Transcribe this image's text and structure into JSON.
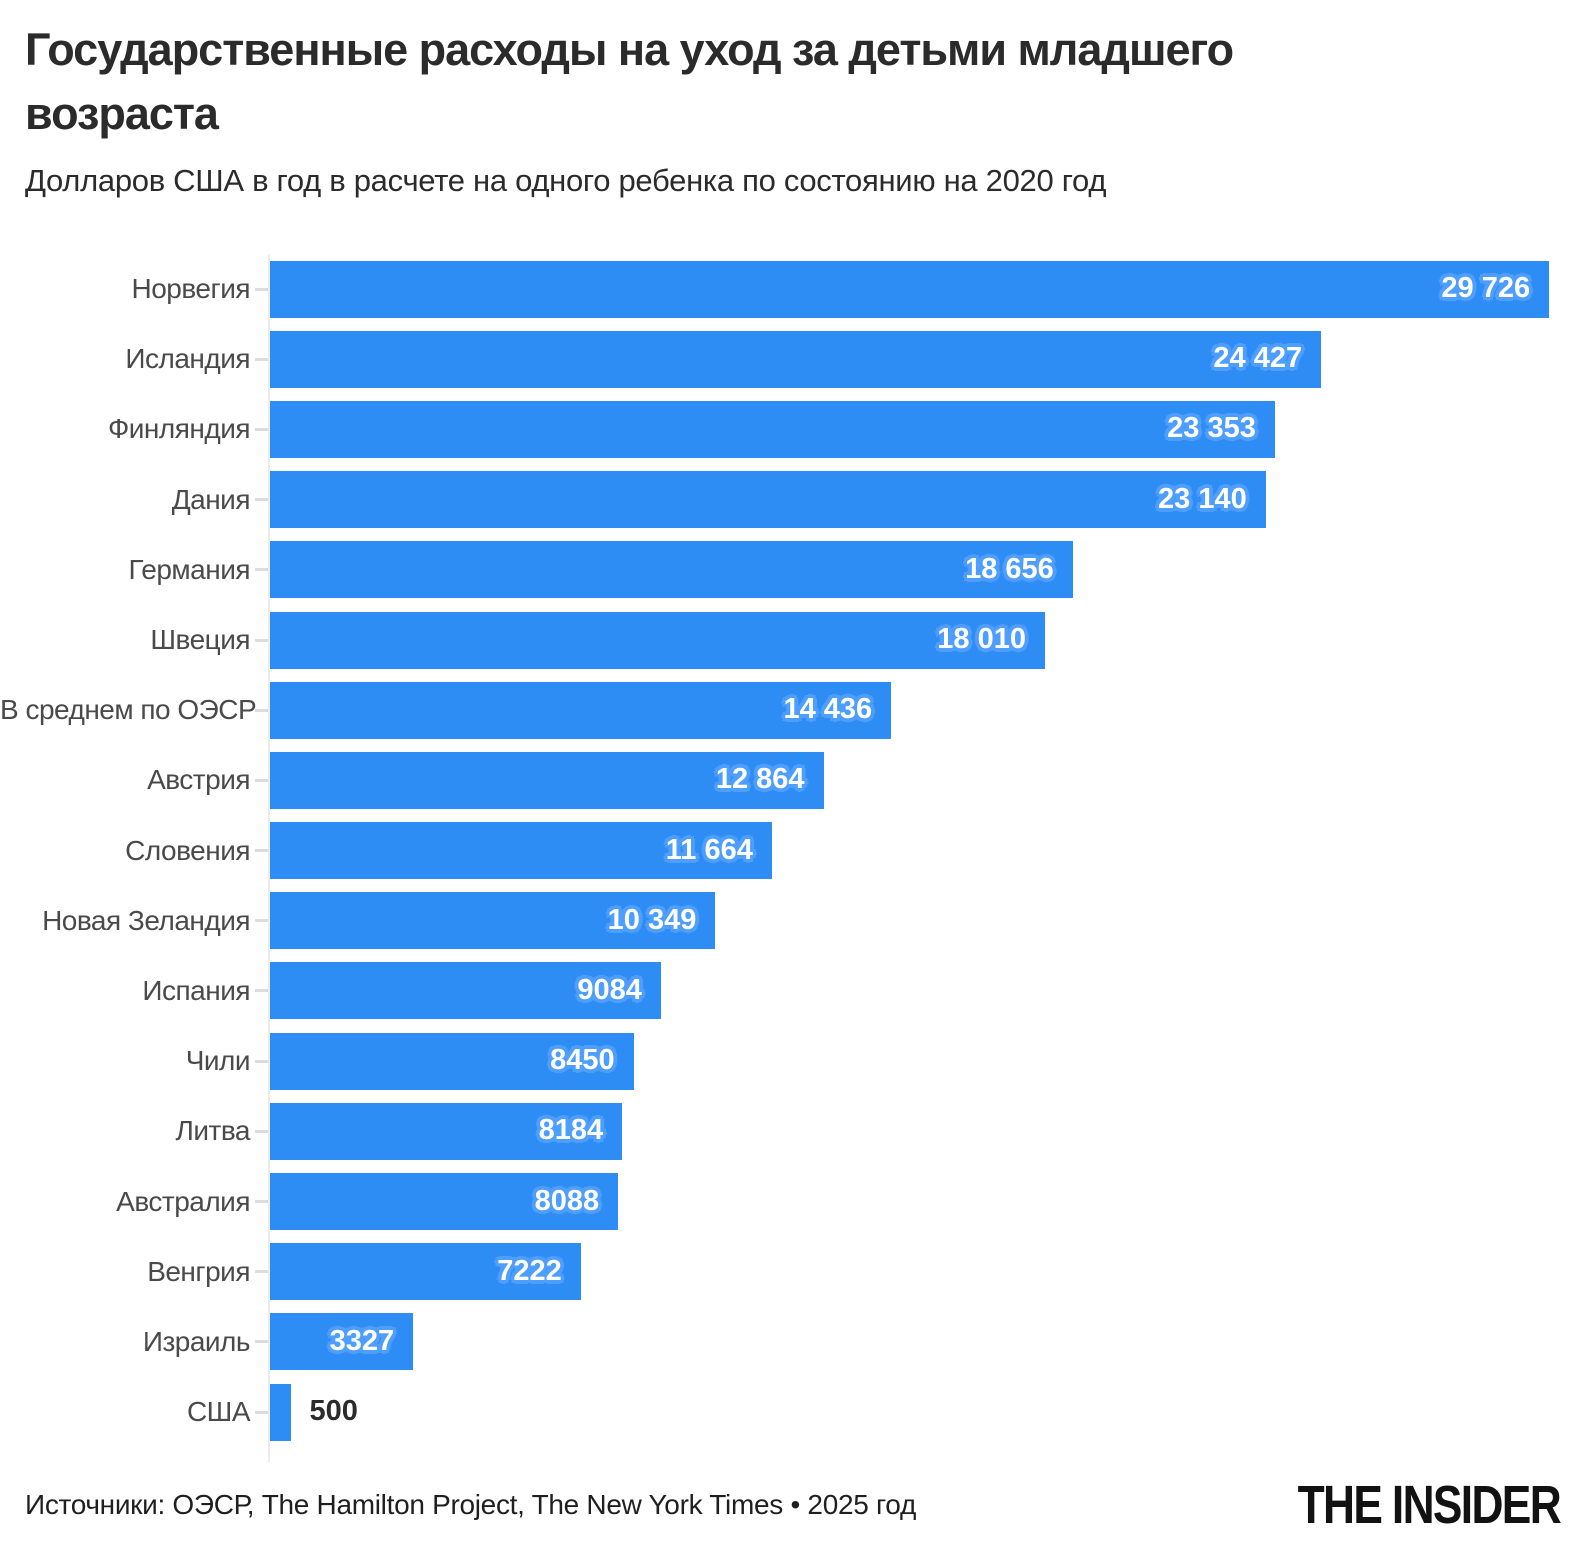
{
  "title": "Государственные расходы на уход за детьми младшего возраста",
  "subtitle": "Долларов США в год в расчете на одного ребенка по состоянию на 2020 год",
  "footer": {
    "sources": "Источники: ОЭСР, The Hamilton Project, The New York Times • 2025 год",
    "logo": "THE INSIDER"
  },
  "colors": {
    "bar": "#2e8cf5",
    "value_text": "#ffffff",
    "value_halo": "#4d9eff",
    "value_text_outside": "#2b2b2b",
    "category_label": "#4a4a4a",
    "axis": "#ececec",
    "tick": "#dcdcdc",
    "title_text": "#2b2b2b",
    "background": "#ffffff"
  },
  "chart_data": {
    "type": "bar",
    "orientation": "horizontal",
    "title": "Государственные расходы на уход за детьми младшего возраста",
    "subtitle": "Долларов США в год в расчете на одного ребенка по состоянию на 2020 год",
    "unit": "USD в год на одного ребенка (2020)",
    "categories": [
      "Норвегия",
      "Исландия",
      "Финляндия",
      "Дания",
      "Германия",
      "Швеция",
      "В среднем по ОЭСР",
      "Австрия",
      "Словения",
      "Новая Зеландия",
      "Испания",
      "Чили",
      "Литва",
      "Австралия",
      "Венгрия",
      "Израиль",
      "США"
    ],
    "values": [
      29726,
      24427,
      23353,
      23140,
      18656,
      18010,
      14436,
      12864,
      11664,
      10349,
      9084,
      8450,
      8184,
      8088,
      7222,
      3327,
      500
    ],
    "value_labels": [
      "29 726",
      "24 427",
      "23 353",
      "23 140",
      "18 656",
      "18 010",
      "14 436",
      "12 864",
      "11 664",
      "10 349",
      "9084",
      "8450",
      "8184",
      "8088",
      "7222",
      "3327",
      "500"
    ],
    "xlim": [
      0,
      29726
    ],
    "grid": false,
    "legend": false,
    "value_labels_position": "inside-end, outside-end for США"
  }
}
